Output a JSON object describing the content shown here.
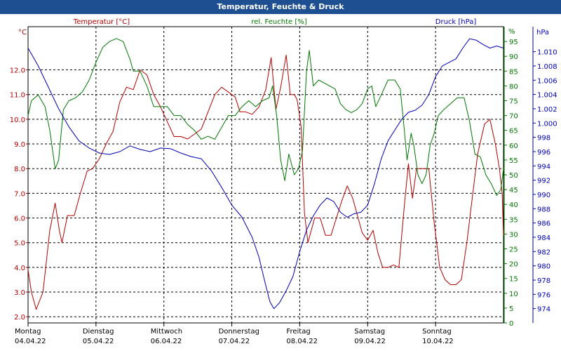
{
  "window": {
    "title": "Temperatur, Feuchte & Druck"
  },
  "colors": {
    "background": "#ffffff",
    "title_bar": "#1d4f91",
    "temperature": "#b40000",
    "humidity": "#007700",
    "pressure": "#0000b4",
    "grid": "#000000"
  },
  "chart_data": {
    "type": "line",
    "title": "Temperatur, Feuchte & Druck",
    "grid": true,
    "x_days": [
      {
        "day": "Montag",
        "date": "04.04.22"
      },
      {
        "day": "Dienstag",
        "date": "05.04.22"
      },
      {
        "day": "Mittwoch",
        "date": "06.04.22"
      },
      {
        "day": "Donnerstag",
        "date": "07.04.22"
      },
      {
        "day": "Freitag",
        "date": "08.04.22"
      },
      {
        "day": "Samstag",
        "date": "09.04.22"
      },
      {
        "day": "Sonntag",
        "date": "10.04.22"
      }
    ],
    "x_range": [
      0,
      7
    ],
    "axes": {
      "temperature": {
        "title": "Temperatur [°C]",
        "unit": "°C",
        "range": [
          1.75,
          13.75
        ],
        "ticks": [
          "2.0",
          "3.0",
          "4.0",
          "5.0",
          "6.0",
          "7.0",
          "8.0",
          "9.0",
          "10.0",
          "11.0",
          "12.0"
        ]
      },
      "humidity": {
        "title": "rel. Feuchte [%]",
        "unit": "%",
        "range": [
          0,
          100
        ],
        "ticks": [
          "0",
          "5",
          "10",
          "15",
          "20",
          "25",
          "30",
          "35",
          "40",
          "45",
          "50",
          "55",
          "60",
          "65",
          "70",
          "75",
          "80",
          "85",
          "90",
          "95"
        ]
      },
      "pressure": {
        "title": "Druck [hPa]",
        "unit": "hPa",
        "range": [
          972,
          1013.5
        ],
        "ticks": [
          "974",
          "976",
          "978",
          "980",
          "982",
          "984",
          "986",
          "988",
          "990",
          "992",
          "994",
          "996",
          "998",
          "1.000",
          "1.002",
          "1.004",
          "1.006",
          "1.008",
          "1.010"
        ]
      }
    },
    "series": [
      {
        "name": "Temperatur",
        "axis": "temperature",
        "points": [
          [
            0.0,
            3.9
          ],
          [
            0.05,
            3.0
          ],
          [
            0.12,
            2.3
          ],
          [
            0.22,
            3.0
          ],
          [
            0.32,
            5.5
          ],
          [
            0.4,
            6.6
          ],
          [
            0.46,
            5.5
          ],
          [
            0.5,
            5.0
          ],
          [
            0.58,
            6.1
          ],
          [
            0.68,
            6.1
          ],
          [
            0.77,
            7.0
          ],
          [
            0.87,
            7.9
          ],
          [
            0.95,
            8.0
          ],
          [
            1.05,
            8.4
          ],
          [
            1.15,
            9.0
          ],
          [
            1.25,
            9.5
          ],
          [
            1.35,
            10.7
          ],
          [
            1.45,
            11.3
          ],
          [
            1.55,
            11.2
          ],
          [
            1.65,
            12.0
          ],
          [
            1.75,
            11.8
          ],
          [
            1.85,
            11.0
          ],
          [
            1.95,
            10.5
          ],
          [
            2.05,
            9.9
          ],
          [
            2.15,
            9.3
          ],
          [
            2.25,
            9.3
          ],
          [
            2.35,
            9.2
          ],
          [
            2.45,
            9.4
          ],
          [
            2.55,
            9.6
          ],
          [
            2.65,
            10.3
          ],
          [
            2.75,
            11.0
          ],
          [
            2.85,
            11.3
          ],
          [
            2.95,
            11.1
          ],
          [
            3.05,
            10.9
          ],
          [
            3.12,
            10.3
          ],
          [
            3.2,
            10.3
          ],
          [
            3.3,
            10.2
          ],
          [
            3.4,
            10.5
          ],
          [
            3.5,
            11.2
          ],
          [
            3.58,
            12.5
          ],
          [
            3.65,
            10.4
          ],
          [
            3.72,
            11.3
          ],
          [
            3.8,
            12.6
          ],
          [
            3.86,
            11.0
          ],
          [
            3.92,
            11.0
          ],
          [
            3.96,
            10.8
          ],
          [
            4.02,
            9.7
          ],
          [
            4.07,
            6.2
          ],
          [
            4.12,
            5.0
          ],
          [
            4.22,
            6.0
          ],
          [
            4.3,
            6.0
          ],
          [
            4.38,
            5.3
          ],
          [
            4.46,
            5.3
          ],
          [
            4.54,
            6.0
          ],
          [
            4.62,
            6.7
          ],
          [
            4.7,
            7.3
          ],
          [
            4.78,
            6.8
          ],
          [
            4.86,
            6.0
          ],
          [
            4.92,
            5.4
          ],
          [
            5.0,
            5.1
          ],
          [
            5.08,
            5.5
          ],
          [
            5.15,
            4.6
          ],
          [
            5.22,
            4.0
          ],
          [
            5.3,
            4.0
          ],
          [
            5.38,
            4.1
          ],
          [
            5.46,
            4.0
          ],
          [
            5.54,
            6.5
          ],
          [
            5.6,
            8.2
          ],
          [
            5.66,
            6.8
          ],
          [
            5.72,
            8.0
          ],
          [
            5.8,
            8.0
          ],
          [
            5.9,
            8.0
          ],
          [
            5.98,
            5.8
          ],
          [
            6.06,
            4.0
          ],
          [
            6.14,
            3.5
          ],
          [
            6.22,
            3.3
          ],
          [
            6.3,
            3.3
          ],
          [
            6.38,
            3.5
          ],
          [
            6.46,
            5.0
          ],
          [
            6.54,
            6.8
          ],
          [
            6.62,
            8.6
          ],
          [
            6.72,
            9.8
          ],
          [
            6.8,
            10.0
          ],
          [
            6.88,
            9.0
          ],
          [
            6.94,
            8.0
          ],
          [
            6.98,
            7.0
          ],
          [
            7.0,
            5.3
          ]
        ]
      },
      {
        "name": "rel. Feuchte",
        "axis": "humidity",
        "points": [
          [
            0.0,
            70
          ],
          [
            0.05,
            75
          ],
          [
            0.15,
            77
          ],
          [
            0.25,
            73
          ],
          [
            0.32,
            65
          ],
          [
            0.4,
            52
          ],
          [
            0.45,
            55
          ],
          [
            0.52,
            72
          ],
          [
            0.6,
            75
          ],
          [
            0.7,
            76
          ],
          [
            0.8,
            78
          ],
          [
            0.9,
            82
          ],
          [
            1.0,
            88
          ],
          [
            1.1,
            93
          ],
          [
            1.2,
            95
          ],
          [
            1.3,
            96
          ],
          [
            1.4,
            95
          ],
          [
            1.5,
            89
          ],
          [
            1.55,
            85
          ],
          [
            1.65,
            85
          ],
          [
            1.75,
            80
          ],
          [
            1.85,
            73
          ],
          [
            1.95,
            73
          ],
          [
            2.05,
            73
          ],
          [
            2.15,
            70
          ],
          [
            2.25,
            70
          ],
          [
            2.35,
            67
          ],
          [
            2.45,
            65
          ],
          [
            2.55,
            62
          ],
          [
            2.65,
            63
          ],
          [
            2.75,
            62
          ],
          [
            2.85,
            66
          ],
          [
            2.95,
            70
          ],
          [
            3.05,
            70
          ],
          [
            3.15,
            73
          ],
          [
            3.25,
            75
          ],
          [
            3.35,
            73
          ],
          [
            3.45,
            75
          ],
          [
            3.55,
            76
          ],
          [
            3.6,
            80
          ],
          [
            3.66,
            70
          ],
          [
            3.72,
            55
          ],
          [
            3.78,
            48
          ],
          [
            3.84,
            57
          ],
          [
            3.92,
            50
          ],
          [
            3.98,
            52
          ],
          [
            4.04,
            58
          ],
          [
            4.1,
            85
          ],
          [
            4.14,
            92
          ],
          [
            4.2,
            80
          ],
          [
            4.28,
            82
          ],
          [
            4.36,
            81
          ],
          [
            4.44,
            80
          ],
          [
            4.52,
            79
          ],
          [
            4.6,
            74
          ],
          [
            4.68,
            72
          ],
          [
            4.76,
            71
          ],
          [
            4.84,
            72
          ],
          [
            4.92,
            74
          ],
          [
            5.0,
            79
          ],
          [
            5.06,
            80
          ],
          [
            5.12,
            73
          ],
          [
            5.2,
            77
          ],
          [
            5.3,
            82
          ],
          [
            5.4,
            82
          ],
          [
            5.48,
            79
          ],
          [
            5.54,
            65
          ],
          [
            5.58,
            55
          ],
          [
            5.64,
            64
          ],
          [
            5.68,
            60
          ],
          [
            5.74,
            50
          ],
          [
            5.8,
            47
          ],
          [
            5.86,
            50
          ],
          [
            5.92,
            60
          ],
          [
            5.98,
            64
          ],
          [
            6.04,
            70
          ],
          [
            6.12,
            72
          ],
          [
            6.22,
            74
          ],
          [
            6.32,
            76
          ],
          [
            6.42,
            76
          ],
          [
            6.5,
            68
          ],
          [
            6.58,
            57
          ],
          [
            6.66,
            56
          ],
          [
            6.74,
            50
          ],
          [
            6.82,
            47
          ],
          [
            6.9,
            43
          ],
          [
            6.96,
            45
          ],
          [
            7.0,
            52
          ]
        ]
      },
      {
        "name": "Druck",
        "axis": "pressure",
        "points": [
          [
            0.0,
            1010.5
          ],
          [
            0.15,
            1008
          ],
          [
            0.3,
            1005
          ],
          [
            0.45,
            1002
          ],
          [
            0.6,
            999.5
          ],
          [
            0.75,
            997.5
          ],
          [
            0.9,
            996.5
          ],
          [
            1.05,
            995.8
          ],
          [
            1.2,
            995.6
          ],
          [
            1.35,
            996.0
          ],
          [
            1.5,
            996.8
          ],
          [
            1.65,
            996.3
          ],
          [
            1.8,
            996.0
          ],
          [
            1.95,
            996.5
          ],
          [
            2.1,
            996.4
          ],
          [
            2.25,
            995.8
          ],
          [
            2.4,
            995.3
          ],
          [
            2.55,
            995.0
          ],
          [
            2.7,
            993.3
          ],
          [
            2.85,
            991.0
          ],
          [
            3.0,
            988.5
          ],
          [
            3.15,
            986.8
          ],
          [
            3.3,
            984.0
          ],
          [
            3.4,
            981.2
          ],
          [
            3.48,
            978.0
          ],
          [
            3.56,
            975.0
          ],
          [
            3.62,
            974.0
          ],
          [
            3.7,
            974.8
          ],
          [
            3.8,
            976.5
          ],
          [
            3.9,
            978.5
          ],
          [
            4.0,
            982.0
          ],
          [
            4.1,
            985.0
          ],
          [
            4.2,
            987.0
          ],
          [
            4.3,
            988.5
          ],
          [
            4.4,
            989.5
          ],
          [
            4.5,
            989.0
          ],
          [
            4.6,
            987.5
          ],
          [
            4.7,
            986.8
          ],
          [
            4.8,
            987.3
          ],
          [
            4.9,
            987.5
          ],
          [
            5.0,
            988.5
          ],
          [
            5.1,
            991.5
          ],
          [
            5.2,
            995.0
          ],
          [
            5.3,
            997.5
          ],
          [
            5.4,
            999.0
          ],
          [
            5.5,
            1000.5
          ],
          [
            5.6,
            1001.5
          ],
          [
            5.7,
            1001.8
          ],
          [
            5.8,
            1002.5
          ],
          [
            5.9,
            1004.0
          ],
          [
            6.0,
            1006.5
          ],
          [
            6.1,
            1008.0
          ],
          [
            6.2,
            1008.5
          ],
          [
            6.3,
            1009.0
          ],
          [
            6.4,
            1010.5
          ],
          [
            6.5,
            1011.8
          ],
          [
            6.6,
            1011.6
          ],
          [
            6.7,
            1011.0
          ],
          [
            6.8,
            1010.5
          ],
          [
            6.9,
            1010.8
          ],
          [
            7.0,
            1010.5
          ]
        ]
      }
    ]
  }
}
